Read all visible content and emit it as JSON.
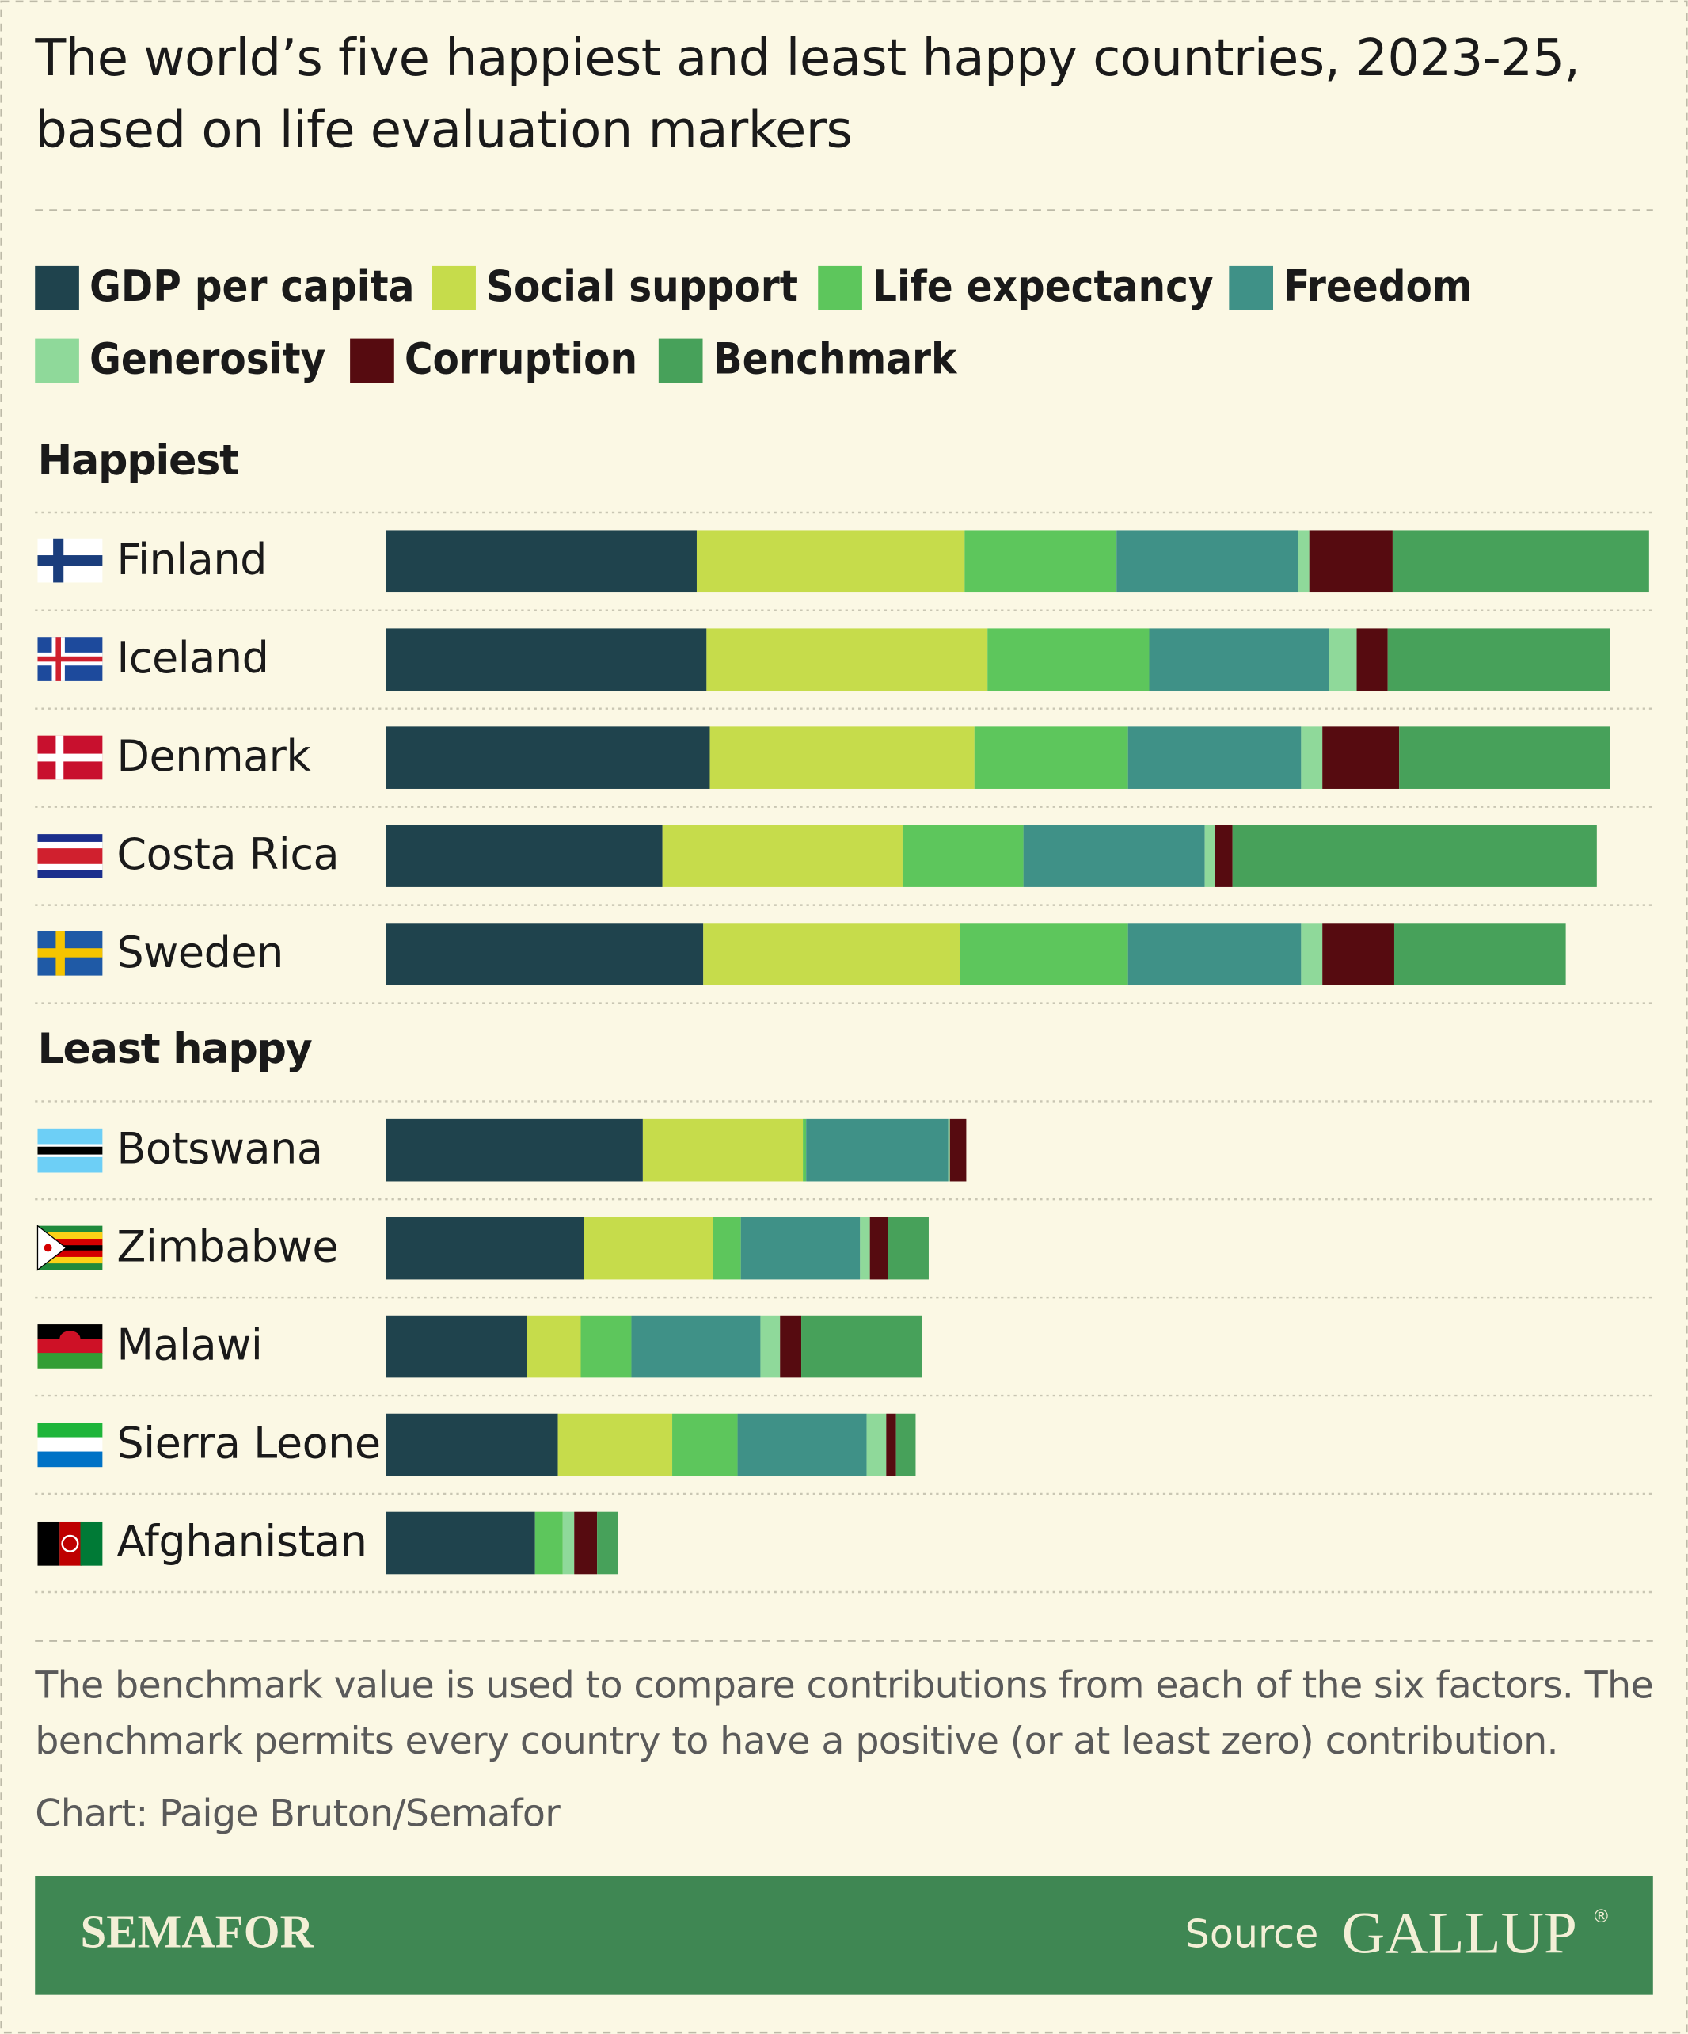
{
  "chart_data": {
    "type": "bar",
    "stacked": true,
    "title": "The world’s five happiest and least happy countries, 2023-25, based on life evaluation markers",
    "series": [
      {
        "name": "GDP per capita",
        "color": "#1f434d"
      },
      {
        "name": "Social support",
        "color": "#c6dc4b"
      },
      {
        "name": "Life expectancy",
        "color": "#5dc65c"
      },
      {
        "name": "Freedom",
        "color": "#3f9187"
      },
      {
        "name": "Generosity",
        "color": "#8fd99a"
      },
      {
        "name": "Corruption",
        "color": "#560b10"
      },
      {
        "name": "Benchmark",
        "color": "#47a15a"
      }
    ],
    "panels": [
      {
        "title": "Happiest",
        "categories": [
          "Finland",
          "Iceland",
          "Denmark",
          "Costa Rica",
          "Sweden"
        ],
        "values": [
          [
            1.9,
            1.96,
            1.98,
            1.69,
            1.94
          ],
          [
            1.64,
            1.72,
            1.62,
            1.47,
            1.57
          ],
          [
            0.93,
            0.99,
            0.94,
            0.74,
            1.03
          ],
          [
            1.11,
            1.1,
            1.06,
            1.11,
            1.06
          ],
          [
            0.07,
            0.17,
            0.13,
            0.06,
            0.13
          ],
          [
            0.51,
            0.19,
            0.47,
            0.11,
            0.44
          ],
          [
            1.57,
            1.36,
            1.29,
            2.23,
            1.05
          ]
        ]
      },
      {
        "title": "Least happy",
        "categories": [
          "Botswana",
          "Zimbabwe",
          "Malawi",
          "Sierra Leone",
          "Afghanistan"
        ],
        "values": [
          [
            1.57,
            1.21,
            0.86,
            1.05,
            0.91
          ],
          [
            0.98,
            0.79,
            0.33,
            0.7,
            0
          ],
          [
            0.02,
            0.17,
            0.31,
            0.4,
            0.17
          ],
          [
            0.87,
            0.73,
            0.79,
            0.79,
            0
          ],
          [
            0.01,
            0.06,
            0.12,
            0.12,
            0.07
          ],
          [
            0.1,
            0.11,
            0.13,
            0.06,
            0.14
          ],
          [
            0,
            0.25,
            0.74,
            0.12,
            0.13
          ]
        ]
      }
    ]
  },
  "note": "The benchmark value is used to compare contributions from each of the six factors. The benchmark permits every country to have a positive (or at least zero) contribution.",
  "credit": "Chart: Paige Bruton/Semafor",
  "brand": "SEMAFOR",
  "source_label": "Source",
  "source_name": "GALLUP",
  "source_mark": "®"
}
